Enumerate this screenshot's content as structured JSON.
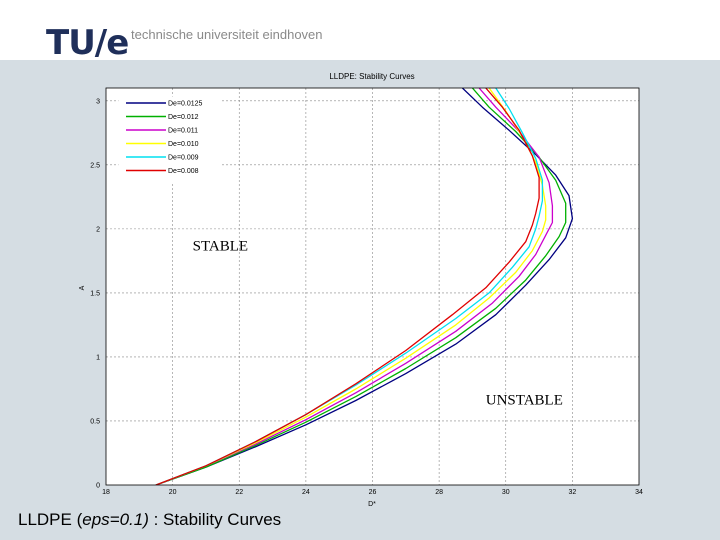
{
  "header": {
    "logo_text": "TU/e",
    "university_name": "technische universiteit eindhoven"
  },
  "slide_title": {
    "prefix": "LLDPE (",
    "italic": "eps=0.1)",
    "suffix": " : Stability Curves"
  },
  "chart_data": {
    "type": "line",
    "title": "LLDPE: Stability Curves",
    "xlabel": "D*",
    "ylabel": "A",
    "xlim": [
      18,
      34
    ],
    "ylim": [
      0,
      3.1
    ],
    "x_ticks": [
      18,
      20,
      22,
      24,
      26,
      28,
      30,
      32,
      34
    ],
    "y_ticks": [
      0,
      0.5,
      1,
      1.5,
      2,
      2.5,
      3
    ],
    "x_tick_labels": [
      "18",
      "20",
      "22",
      "24",
      "26",
      "28",
      "30",
      "32",
      "34"
    ],
    "y_tick_labels": [
      "0",
      "0.5",
      "1",
      "1.5",
      "2",
      "2.5",
      "3"
    ],
    "grid": true,
    "legend_position": "top-left",
    "annotations": [
      {
        "text": "STABLE",
        "x": 20.6,
        "y": 1.83
      },
      {
        "text": "UNSTABLE",
        "x": 29.4,
        "y": 0.63
      }
    ],
    "series": [
      {
        "name": "De=0.0125",
        "color": "#000080",
        "x": [
          19.5,
          21,
          22.5,
          24,
          25.5,
          27,
          28.5,
          29.7,
          30.6,
          31.3,
          31.8,
          32.0,
          31.9,
          31.5,
          30.9,
          30.1,
          29.3,
          28.7
        ],
        "y": [
          0.0,
          0.14,
          0.3,
          0.47,
          0.66,
          0.87,
          1.1,
          1.33,
          1.56,
          1.76,
          1.93,
          2.08,
          2.26,
          2.42,
          2.58,
          2.77,
          2.95,
          3.1
        ]
      },
      {
        "name": "De=0.012",
        "color": "#00b000",
        "x": [
          19.5,
          21,
          22.5,
          24,
          25.5,
          27,
          28.5,
          29.7,
          30.6,
          31.2,
          31.6,
          31.8,
          31.8,
          31.5,
          31.0,
          30.3,
          29.5,
          29.0
        ],
        "y": [
          0.0,
          0.14,
          0.31,
          0.49,
          0.69,
          0.91,
          1.15,
          1.38,
          1.6,
          1.79,
          1.94,
          2.05,
          2.2,
          2.38,
          2.56,
          2.76,
          2.95,
          3.1
        ]
      },
      {
        "name": "De=0.011",
        "color": "#cc00cc",
        "x": [
          19.5,
          21,
          22.5,
          24,
          25.5,
          27,
          28.5,
          29.6,
          30.4,
          30.9,
          31.2,
          31.4,
          31.4,
          31.3,
          31.0,
          30.4,
          29.7,
          29.2
        ],
        "y": [
          0.0,
          0.15,
          0.32,
          0.51,
          0.72,
          0.95,
          1.2,
          1.42,
          1.63,
          1.8,
          1.95,
          2.05,
          2.18,
          2.36,
          2.56,
          2.76,
          2.95,
          3.1
        ]
      },
      {
        "name": "De=0.010",
        "color": "#ffff00",
        "x": [
          19.5,
          21,
          22.5,
          24,
          25.5,
          27,
          28.5,
          29.5,
          30.3,
          30.8,
          31.1,
          31.2,
          31.2,
          31.1,
          30.9,
          30.5,
          30.0,
          29.5
        ],
        "y": [
          0.0,
          0.15,
          0.33,
          0.53,
          0.75,
          0.99,
          1.25,
          1.46,
          1.66,
          1.83,
          1.98,
          2.07,
          2.18,
          2.34,
          2.52,
          2.72,
          2.92,
          3.1
        ]
      },
      {
        "name": "De=0.009",
        "color": "#00e0f0",
        "x": [
          19.5,
          21,
          22.5,
          24,
          25.5,
          27,
          28.5,
          29.5,
          30.2,
          30.7,
          30.9,
          31.0,
          31.1,
          31.1,
          30.9,
          30.5,
          30.1,
          29.7
        ],
        "y": [
          0.0,
          0.15,
          0.34,
          0.55,
          0.78,
          1.03,
          1.3,
          1.5,
          1.7,
          1.86,
          2.0,
          2.1,
          2.22,
          2.38,
          2.55,
          2.75,
          2.94,
          3.1
        ]
      },
      {
        "name": "De=0.008",
        "color": "#e00000",
        "x": [
          19.5,
          21,
          22.5,
          24,
          25.5,
          27,
          28.4,
          29.4,
          30.1,
          30.6,
          30.8,
          30.9,
          31.0,
          31.0,
          30.8,
          30.4,
          29.9,
          29.4
        ],
        "y": [
          0.0,
          0.15,
          0.34,
          0.55,
          0.79,
          1.05,
          1.33,
          1.54,
          1.74,
          1.9,
          2.03,
          2.12,
          2.24,
          2.4,
          2.57,
          2.77,
          2.95,
          3.1
        ]
      }
    ]
  }
}
